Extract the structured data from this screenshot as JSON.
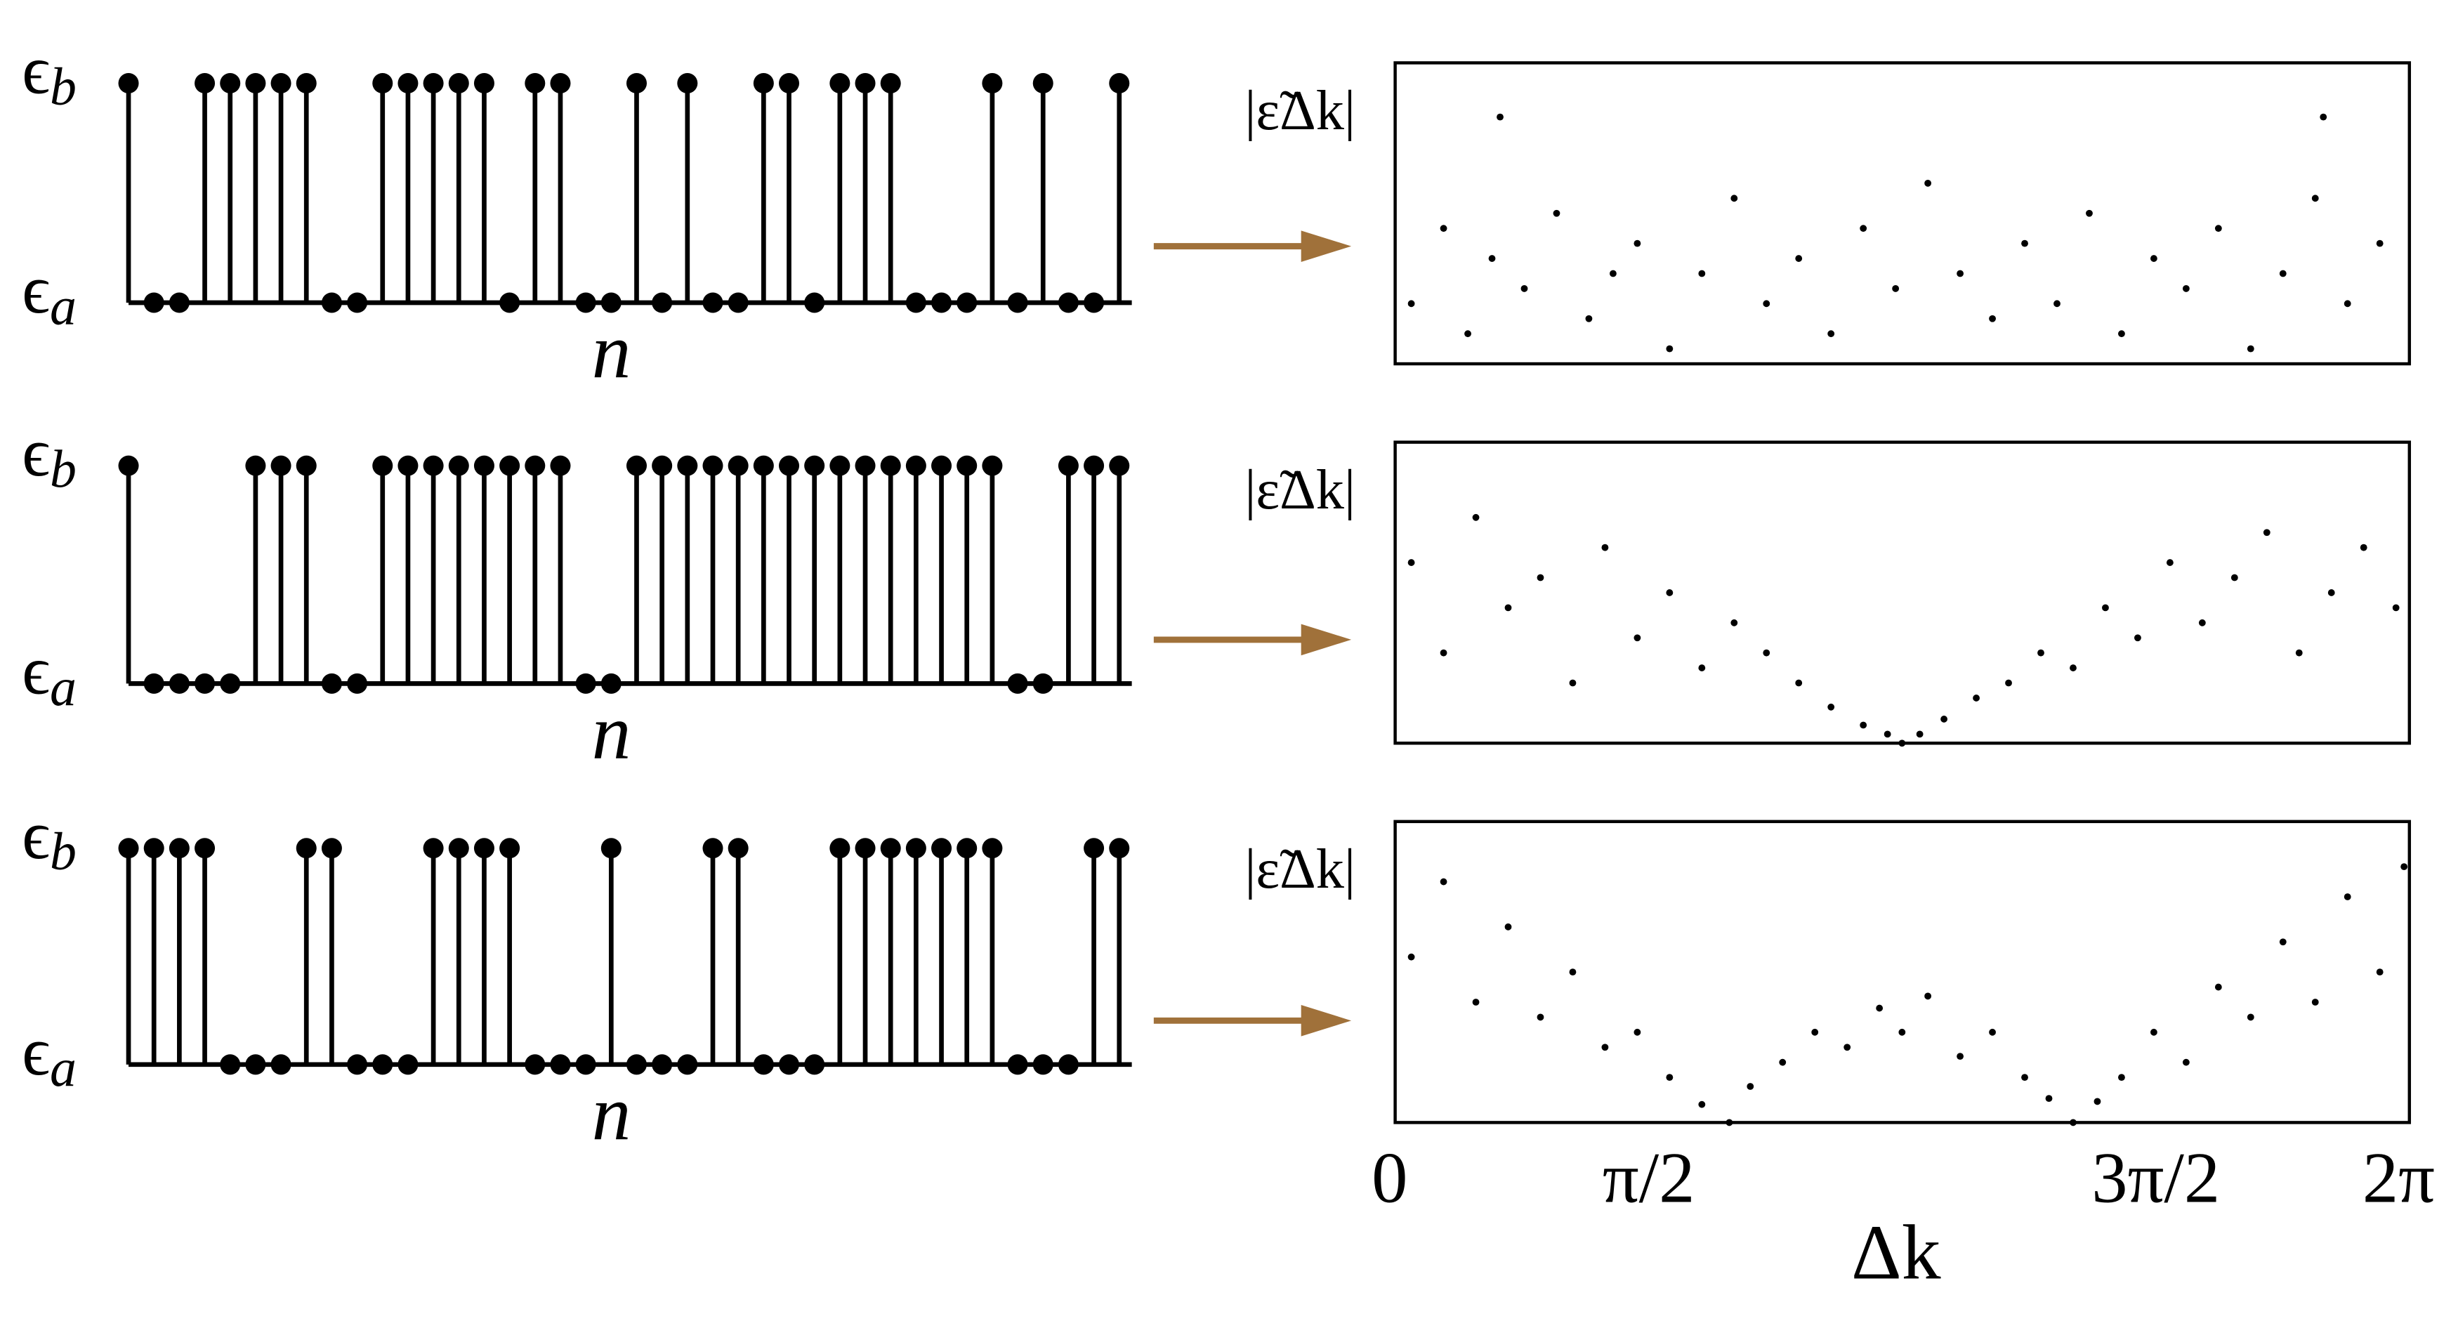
{
  "chart_data": [
    {
      "type": "stem",
      "xlabel": "n",
      "color": "#000000",
      "values": [
        1,
        0,
        0,
        1,
        1,
        1,
        1,
        1,
        0,
        0,
        1,
        1,
        1,
        1,
        1,
        0,
        1,
        1,
        0,
        0,
        1,
        0,
        1,
        0,
        0,
        1,
        1,
        0,
        1,
        1,
        1,
        0,
        0,
        0,
        1,
        0,
        1,
        0,
        0,
        1
      ],
      "ylim": [
        0,
        1
      ],
      "yticks": [
        {
          "value": 0,
          "label": "ϵa"
        },
        {
          "value": 1,
          "label": "ϵb"
        }
      ]
    },
    {
      "type": "stem",
      "xlabel": "n",
      "color": "#000000",
      "values": [
        1,
        0,
        0,
        0,
        0,
        1,
        1,
        1,
        0,
        0,
        1,
        1,
        1,
        1,
        1,
        1,
        1,
        1,
        0,
        0,
        1,
        1,
        1,
        1,
        1,
        1,
        1,
        1,
        1,
        1,
        1,
        1,
        1,
        1,
        1,
        0,
        0,
        1,
        1,
        1
      ],
      "ylim": [
        0,
        1
      ],
      "yticks": [
        {
          "value": 0,
          "label": "ϵa"
        },
        {
          "value": 1,
          "label": "ϵb"
        }
      ]
    },
    {
      "type": "stem",
      "xlabel": "n",
      "color": "#000000",
      "values": [
        1,
        1,
        1,
        1,
        0,
        0,
        0,
        1,
        1,
        0,
        0,
        0,
        1,
        1,
        1,
        1,
        0,
        0,
        0,
        1,
        0,
        0,
        0,
        1,
        1,
        0,
        0,
        0,
        1,
        1,
        1,
        1,
        1,
        1,
        1,
        0,
        0,
        0,
        1,
        1
      ],
      "ylim": [
        0,
        1
      ],
      "yticks": [
        {
          "value": 0,
          "label": "ϵa"
        },
        {
          "value": 1,
          "label": "ϵb"
        }
      ]
    },
    {
      "type": "scatter",
      "ylabel": "|ε̃Δk|",
      "color": "#000000",
      "xlim": [
        0,
        6.283185
      ],
      "ylim": [
        0,
        1
      ],
      "x": [
        0.1,
        0.3,
        0.45,
        0.6,
        0.8,
        1.0,
        1.2,
        1.35,
        1.5,
        1.7,
        1.9,
        2.1,
        2.3,
        2.5,
        2.7,
        2.9,
        3.1,
        3.3,
        3.5,
        3.7,
        3.9,
        4.1,
        4.3,
        4.5,
        4.7,
        4.9,
        5.1,
        5.3,
        5.5,
        5.7,
        5.9,
        6.1,
        0.65,
        5.75
      ],
      "values": [
        0.2,
        0.45,
        0.1,
        0.35,
        0.25,
        0.5,
        0.15,
        0.3,
        0.4,
        0.05,
        0.3,
        0.55,
        0.2,
        0.35,
        0.1,
        0.45,
        0.25,
        0.6,
        0.3,
        0.15,
        0.4,
        0.2,
        0.5,
        0.1,
        0.35,
        0.25,
        0.45,
        0.05,
        0.3,
        0.55,
        0.2,
        0.4,
        0.82,
        0.82
      ]
    },
    {
      "type": "scatter",
      "ylabel": "|ε̃Δk|",
      "color": "#000000",
      "xlim": [
        0,
        6.283185
      ],
      "ylim": [
        0,
        1
      ],
      "x": [
        0.1,
        0.3,
        0.5,
        0.7,
        0.9,
        1.1,
        1.3,
        1.5,
        1.7,
        1.9,
        2.1,
        2.3,
        2.5,
        2.7,
        2.9,
        3.05,
        3.14,
        3.25,
        3.4,
        3.6,
        3.8,
        4.0,
        4.2,
        4.4,
        4.6,
        4.8,
        5.0,
        5.2,
        5.4,
        5.6,
        5.8,
        6.0,
        6.2
      ],
      "values": [
        0.6,
        0.3,
        0.75,
        0.45,
        0.55,
        0.2,
        0.65,
        0.35,
        0.5,
        0.25,
        0.4,
        0.3,
        0.2,
        0.12,
        0.06,
        0.03,
        0.0,
        0.03,
        0.08,
        0.15,
        0.2,
        0.3,
        0.25,
        0.45,
        0.35,
        0.6,
        0.4,
        0.55,
        0.7,
        0.3,
        0.5,
        0.65,
        0.45
      ]
    },
    {
      "type": "scatter",
      "ylabel": "|ε̃Δk|",
      "xlabel": "Δk",
      "color": "#000000",
      "xlim": [
        0,
        6.283185
      ],
      "ylim": [
        0,
        1
      ],
      "xticks": [
        0,
        {
          "value": 1.5708,
          "label": "π/2"
        },
        {
          "value": 4.7124,
          "label": "3π/2"
        },
        {
          "value": 6.2832,
          "label": "2π"
        }
      ],
      "x": [
        0.1,
        0.3,
        0.5,
        0.7,
        0.9,
        1.1,
        1.3,
        1.5,
        1.7,
        1.9,
        2.07,
        2.2,
        2.4,
        2.6,
        2.8,
        3.0,
        3.14,
        3.3,
        3.5,
        3.7,
        3.9,
        4.05,
        4.2,
        4.35,
        4.5,
        4.7,
        4.9,
        5.1,
        5.3,
        5.5,
        5.7,
        5.9,
        6.1,
        6.25
      ],
      "values": [
        0.55,
        0.8,
        0.4,
        0.65,
        0.35,
        0.5,
        0.25,
        0.3,
        0.15,
        0.06,
        0.0,
        0.12,
        0.2,
        0.3,
        0.25,
        0.38,
        0.3,
        0.42,
        0.22,
        0.3,
        0.15,
        0.08,
        0.0,
        0.07,
        0.15,
        0.3,
        0.2,
        0.45,
        0.35,
        0.6,
        0.4,
        0.75,
        0.5,
        0.85
      ]
    }
  ]
}
